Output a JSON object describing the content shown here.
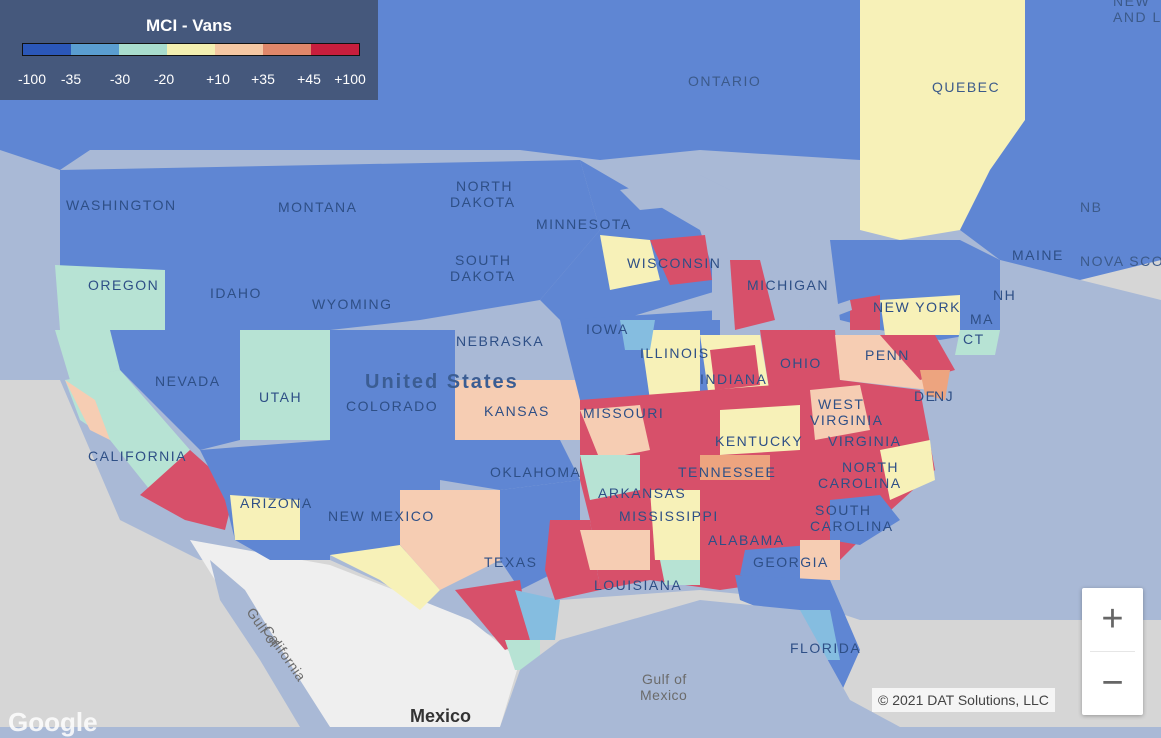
{
  "legend": {
    "title": "MCI - Vans",
    "colors": [
      "#2b57b8",
      "#5a9dd0",
      "#a8dccd",
      "#f3efb1",
      "#f4c7a3",
      "#e0876a",
      "#c81e3d"
    ],
    "ticks": [
      "-100",
      "-35",
      "-30",
      "-20",
      "+10",
      "+35",
      "+45",
      "+100"
    ]
  },
  "map_colors": {
    "water": "#a9b9d6",
    "land_outside": "#d6d6d6",
    "mexico_land": "#efefef",
    "blue": "#5f86d3",
    "light_blue": "#85bde0",
    "teal": "#b7e3d4",
    "yellow": "#f7f1b8",
    "peach": "#f6cdb3",
    "orange": "#eda47f",
    "red": "#d7506a"
  },
  "labels": {
    "ontario": "ONTARIO",
    "quebec": "QUEBEC",
    "washington": "WASHINGTON",
    "montana": "MONTANA",
    "north_dakota_1": "NORTH",
    "north_dakota_2": "DAKOTA",
    "minnesota": "MINNESOTA",
    "south_dakota_1": "SOUTH",
    "south_dakota_2": "DAKOTA",
    "wisconsin": "WISCONSIN",
    "michigan": "MICHIGAN",
    "new_york": "NEW YORK",
    "maine": "MAINE",
    "nb": "NB",
    "nova_scotia": "NOVA SCO",
    "new_and": "NEW",
    "and_l": "AND L",
    "oregon": "OREGON",
    "idaho": "IDAHO",
    "wyoming": "WYOMING",
    "iowa": "IOWA",
    "nebraska": "NEBRASKA",
    "illinois": "ILLINOIS",
    "indiana": "INDIANA",
    "ohio": "OHIO",
    "penn": "PENN",
    "nj": "NJ",
    "de": "DE",
    "ct": "CT",
    "nh": "NH",
    "ma": "MA",
    "nevada": "NEVADA",
    "utah": "UTAH",
    "colorado": "COLORADO",
    "united_states": "United States",
    "kansas": "KANSAS",
    "missouri": "MISSOURI",
    "west_virginia_1": "WEST",
    "west_virginia_2": "VIRGINIA",
    "virginia": "VIRGINIA",
    "kentucky": "KENTUCKY",
    "california": "CALIFORNIA",
    "tennessee": "TENNESSEE",
    "north_carolina_1": "NORTH",
    "north_carolina_2": "CAROLINA",
    "oklahoma": "OKLAHOMA",
    "arkansas": "ARKANSAS",
    "arizona": "ARIZONA",
    "new_mexico": "NEW MEXICO",
    "mississippi": "MISSISSIPPI",
    "alabama": "ALABAMA",
    "south_carolina_1": "SOUTH",
    "south_carolina_2": "CAROLINA",
    "georgia": "GEORGIA",
    "texas": "TEXAS",
    "louisiana": "LOUISIANA",
    "florida": "FLORIDA",
    "gulf_california_1": "Gulf of",
    "gulf_california_2": "California",
    "gulf_mexico_1": "Gulf of",
    "gulf_mexico_2": "Mexico",
    "mexico": "Mexico"
  },
  "attribution": "© 2021 DAT Solutions, LLC",
  "google": "Google",
  "zoom": {
    "in_label": "+",
    "out_label": "−"
  }
}
